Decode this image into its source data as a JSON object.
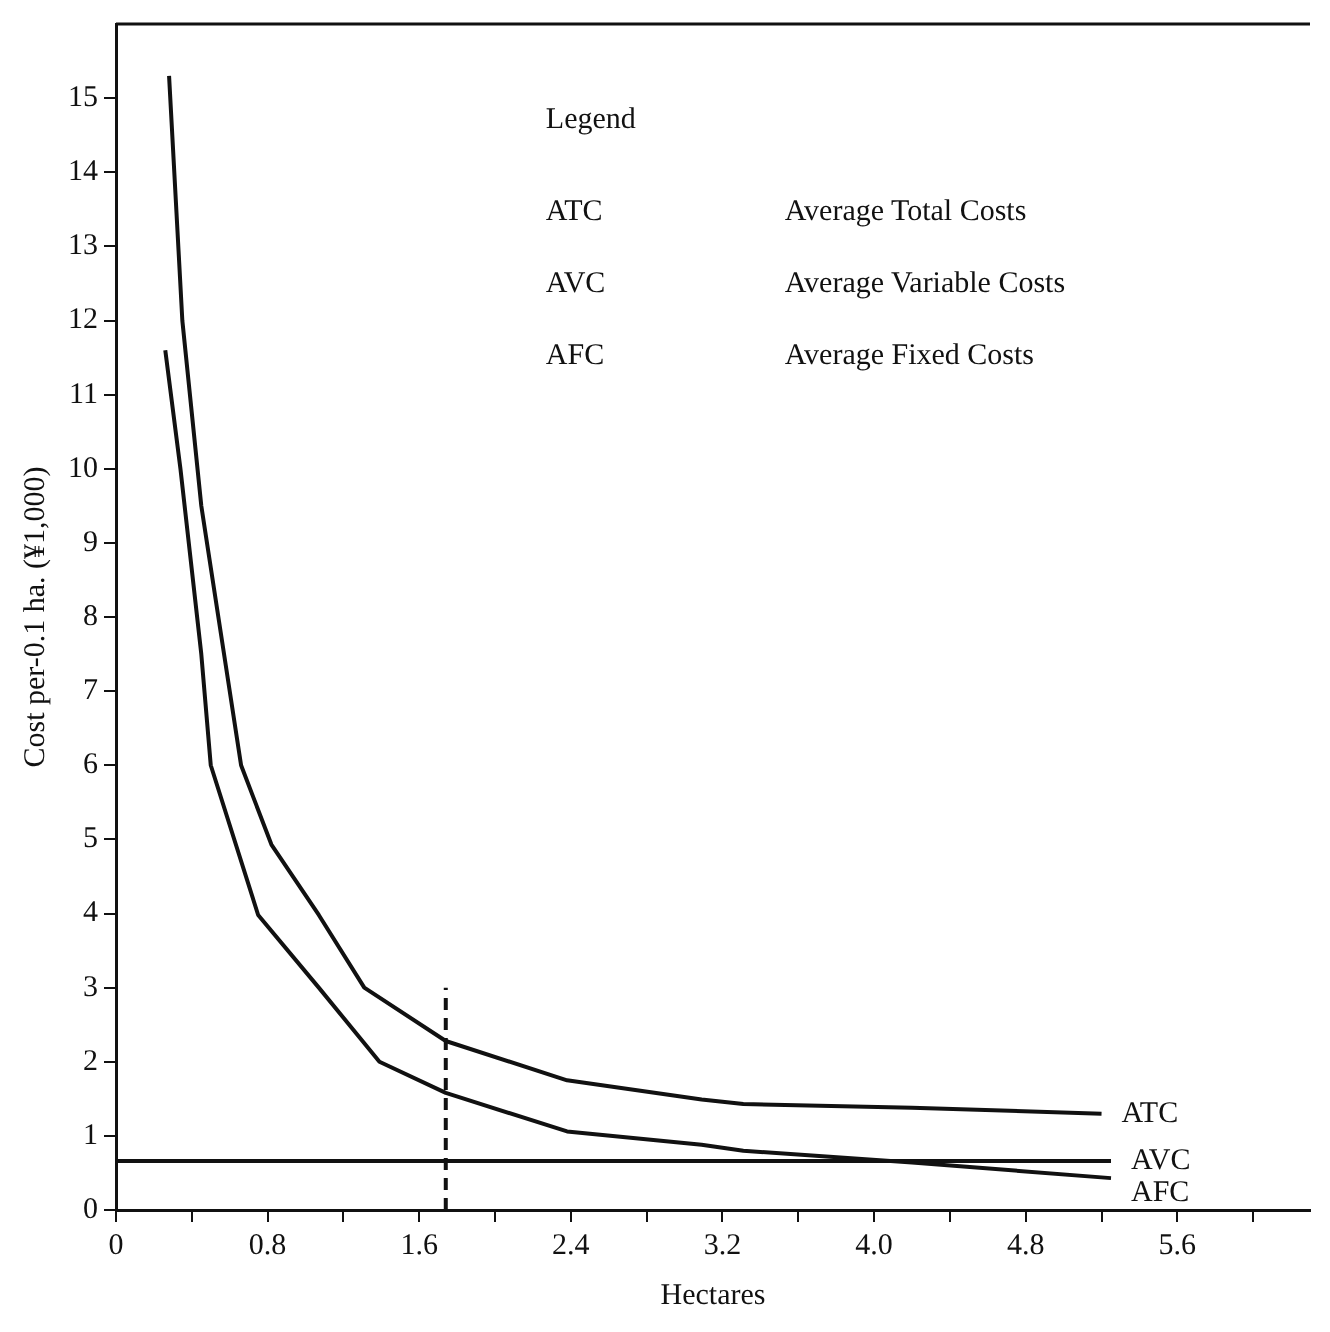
{
  "chart_data": {
    "type": "line",
    "xlabel": "Hectares",
    "ylabel": "Cost per-0.1 ha. (¥1,000)",
    "annotations": [
      "Legend",
      "ATC",
      "Average Total Costs",
      "AVC",
      "Average Variable Costs",
      "AFC",
      "Average Fixed Costs"
    ],
    "xlim": [
      0,
      6.3
    ],
    "ylim": [
      0,
      16
    ],
    "xticks": [
      0,
      {
        "value": 0.4,
        "label": null
      },
      0.8,
      {
        "value": 1.2,
        "label": null
      },
      1.6,
      {
        "value": 2,
        "label": null
      },
      2.4,
      {
        "value": 2.8,
        "label": null
      },
      3.2,
      {
        "value": 3.6,
        "label": null
      },
      {
        "value": 4,
        "label": "4.0"
      },
      {
        "value": 4.4,
        "label": null
      },
      4.8,
      {
        "value": 5.2,
        "label": null
      },
      5.6,
      {
        "value": 6,
        "label": null
      }
    ],
    "yticks": [
      0,
      1,
      2,
      3,
      4,
      5,
      6,
      7,
      8,
      9,
      10,
      11,
      12,
      13,
      14,
      15
    ],
    "grid": false,
    "legend": false,
    "marker": "none",
    "series": [
      {
        "name": "ATC",
        "color": "#111111",
        "line_style": "solid",
        "x": [
          0.28,
          0.35,
          0.45,
          0.57,
          0.66,
          0.82,
          1.07,
          1.31,
          1.74,
          2.38,
          3.09,
          3.31,
          4.2,
          5.2
        ],
        "values": [
          15.3,
          12,
          9.5,
          7.5,
          6,
          4.93,
          3.98,
          3,
          2.28,
          1.75,
          1.49,
          1.43,
          1.38,
          1.3
        ]
      },
      {
        "name": "AVC",
        "color": "#111111",
        "line_style": "solid",
        "x": [
          0,
          5.25
        ],
        "values": [
          0.66,
          0.66
        ]
      },
      {
        "name": "AFC",
        "color": "#111111",
        "line_style": "solid",
        "x": [
          0.26,
          0.34,
          0.45,
          0.5,
          0.75,
          1.07,
          1.39,
          1.74,
          2.38,
          3.09,
          3.31,
          4.2,
          5.25
        ],
        "values": [
          11.6,
          10,
          7.5,
          6,
          3.98,
          3,
          2,
          1.58,
          1.06,
          0.88,
          0.8,
          0.64,
          0.43
        ]
      },
      {
        "color": "#111111",
        "line_style": "dashed",
        "x": [
          1.74,
          1.74
        ],
        "values": [
          0,
          3
        ]
      }
    ]
  }
}
